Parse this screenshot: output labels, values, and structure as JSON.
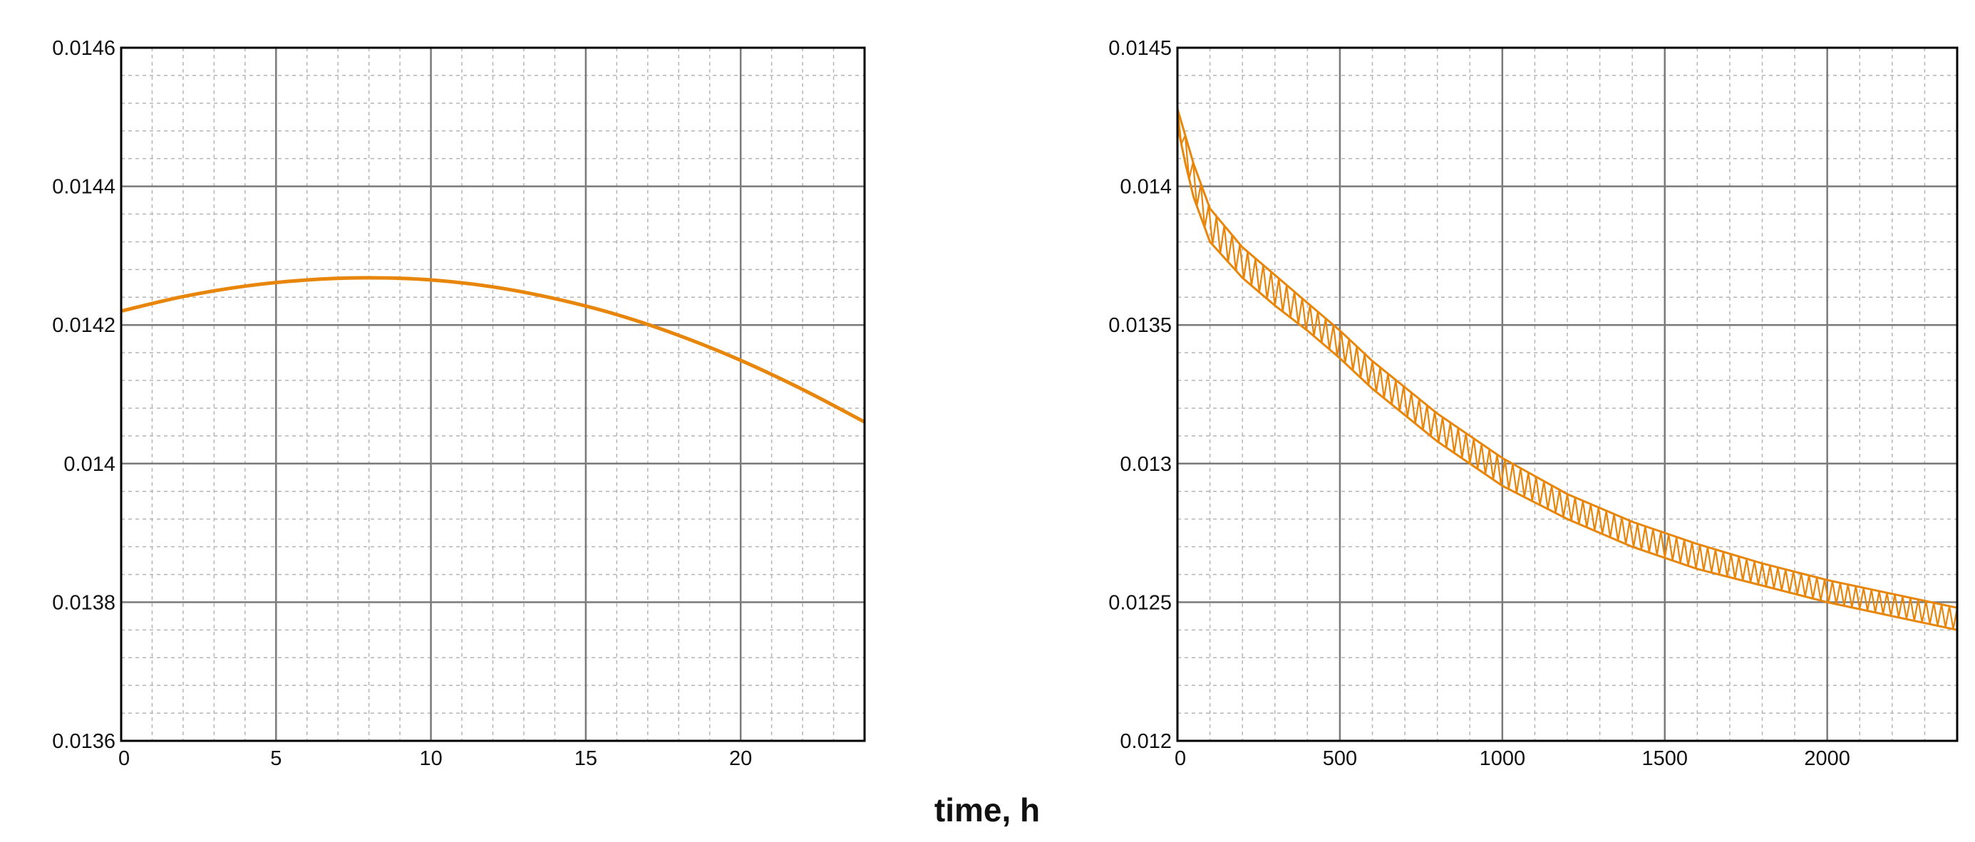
{
  "xlabel": "time, h",
  "colors": {
    "series": "#E8860B",
    "grid_major": "#7a7a7a",
    "grid_minor": "#b5b5b5",
    "frame": "#000000"
  },
  "chart_data": [
    {
      "type": "line",
      "title": "",
      "xlabel": "",
      "ylabel": "",
      "xlim": [
        0,
        24
      ],
      "ylim": [
        0.0136,
        0.0146
      ],
      "x_ticks": [
        0,
        5,
        10,
        15,
        20
      ],
      "x_tick_labels": [
        "0",
        "5",
        "10",
        "15",
        "20"
      ],
      "y_ticks": [
        0.0136,
        0.0138,
        0.014,
        0.0142,
        0.0144,
        0.0146
      ],
      "y_tick_labels": [
        "0.0136",
        "0.0138",
        "0.014",
        "0.0142",
        "0.0144",
        "0.0146"
      ],
      "grid": true,
      "minor_grid": true,
      "legend": "none",
      "series": [
        {
          "color": "#E8860B",
          "x": [
            0,
            2,
            4,
            6,
            8,
            10,
            12,
            14,
            16,
            18,
            20,
            22,
            24
          ],
          "y": [
            0.01422,
            0.014241,
            0.014256,
            0.014265,
            0.014268,
            0.014265,
            0.014255,
            0.014238,
            0.014215,
            0.014185,
            0.014149,
            0.014107,
            0.01406
          ]
        }
      ]
    },
    {
      "type": "line",
      "title": "",
      "xlabel": "",
      "ylabel": "",
      "xlim": [
        0,
        2400
      ],
      "ylim": [
        0.012,
        0.0145
      ],
      "x_ticks": [
        0,
        500,
        1000,
        1500,
        2000
      ],
      "x_tick_labels": [
        "0",
        "500",
        "1000",
        "1500",
        "2000"
      ],
      "y_ticks": [
        0.012,
        0.0125,
        0.013,
        0.0135,
        0.014,
        0.0145
      ],
      "y_tick_labels": [
        "0.012",
        "0.0125",
        "0.013",
        "0.0135",
        "0.014",
        "0.0145"
      ],
      "grid": true,
      "minor_grid": true,
      "legend": "none",
      "series": [
        {
          "color": "#E8860B",
          "oscillation_period_h": 24,
          "band_upper": {
            "x": [
              0,
              25,
              50,
              100,
              200,
              300,
              400,
              500,
              600,
              800,
              1000,
              1200,
              1400,
              1600,
              1800,
              2000,
              2200,
              2400
            ],
            "y": [
              0.01428,
              0.01418,
              0.01408,
              0.01392,
              0.01378,
              0.01368,
              0.01358,
              0.01348,
              0.01337,
              0.01318,
              0.01302,
              0.01289,
              0.01279,
              0.01271,
              0.01264,
              0.01258,
              0.01253,
              0.01248
            ]
          },
          "band_lower": {
            "x": [
              0,
              25,
              50,
              100,
              200,
              300,
              400,
              500,
              600,
              800,
              1000,
              1200,
              1400,
              1600,
              1800,
              2000,
              2200,
              2400
            ],
            "y": [
              0.01422,
              0.01408,
              0.01396,
              0.0138,
              0.01367,
              0.01357,
              0.01348,
              0.01338,
              0.01327,
              0.01308,
              0.01292,
              0.0128,
              0.0127,
              0.01262,
              0.01256,
              0.0125,
              0.01245,
              0.0124
            ]
          }
        }
      ]
    }
  ]
}
